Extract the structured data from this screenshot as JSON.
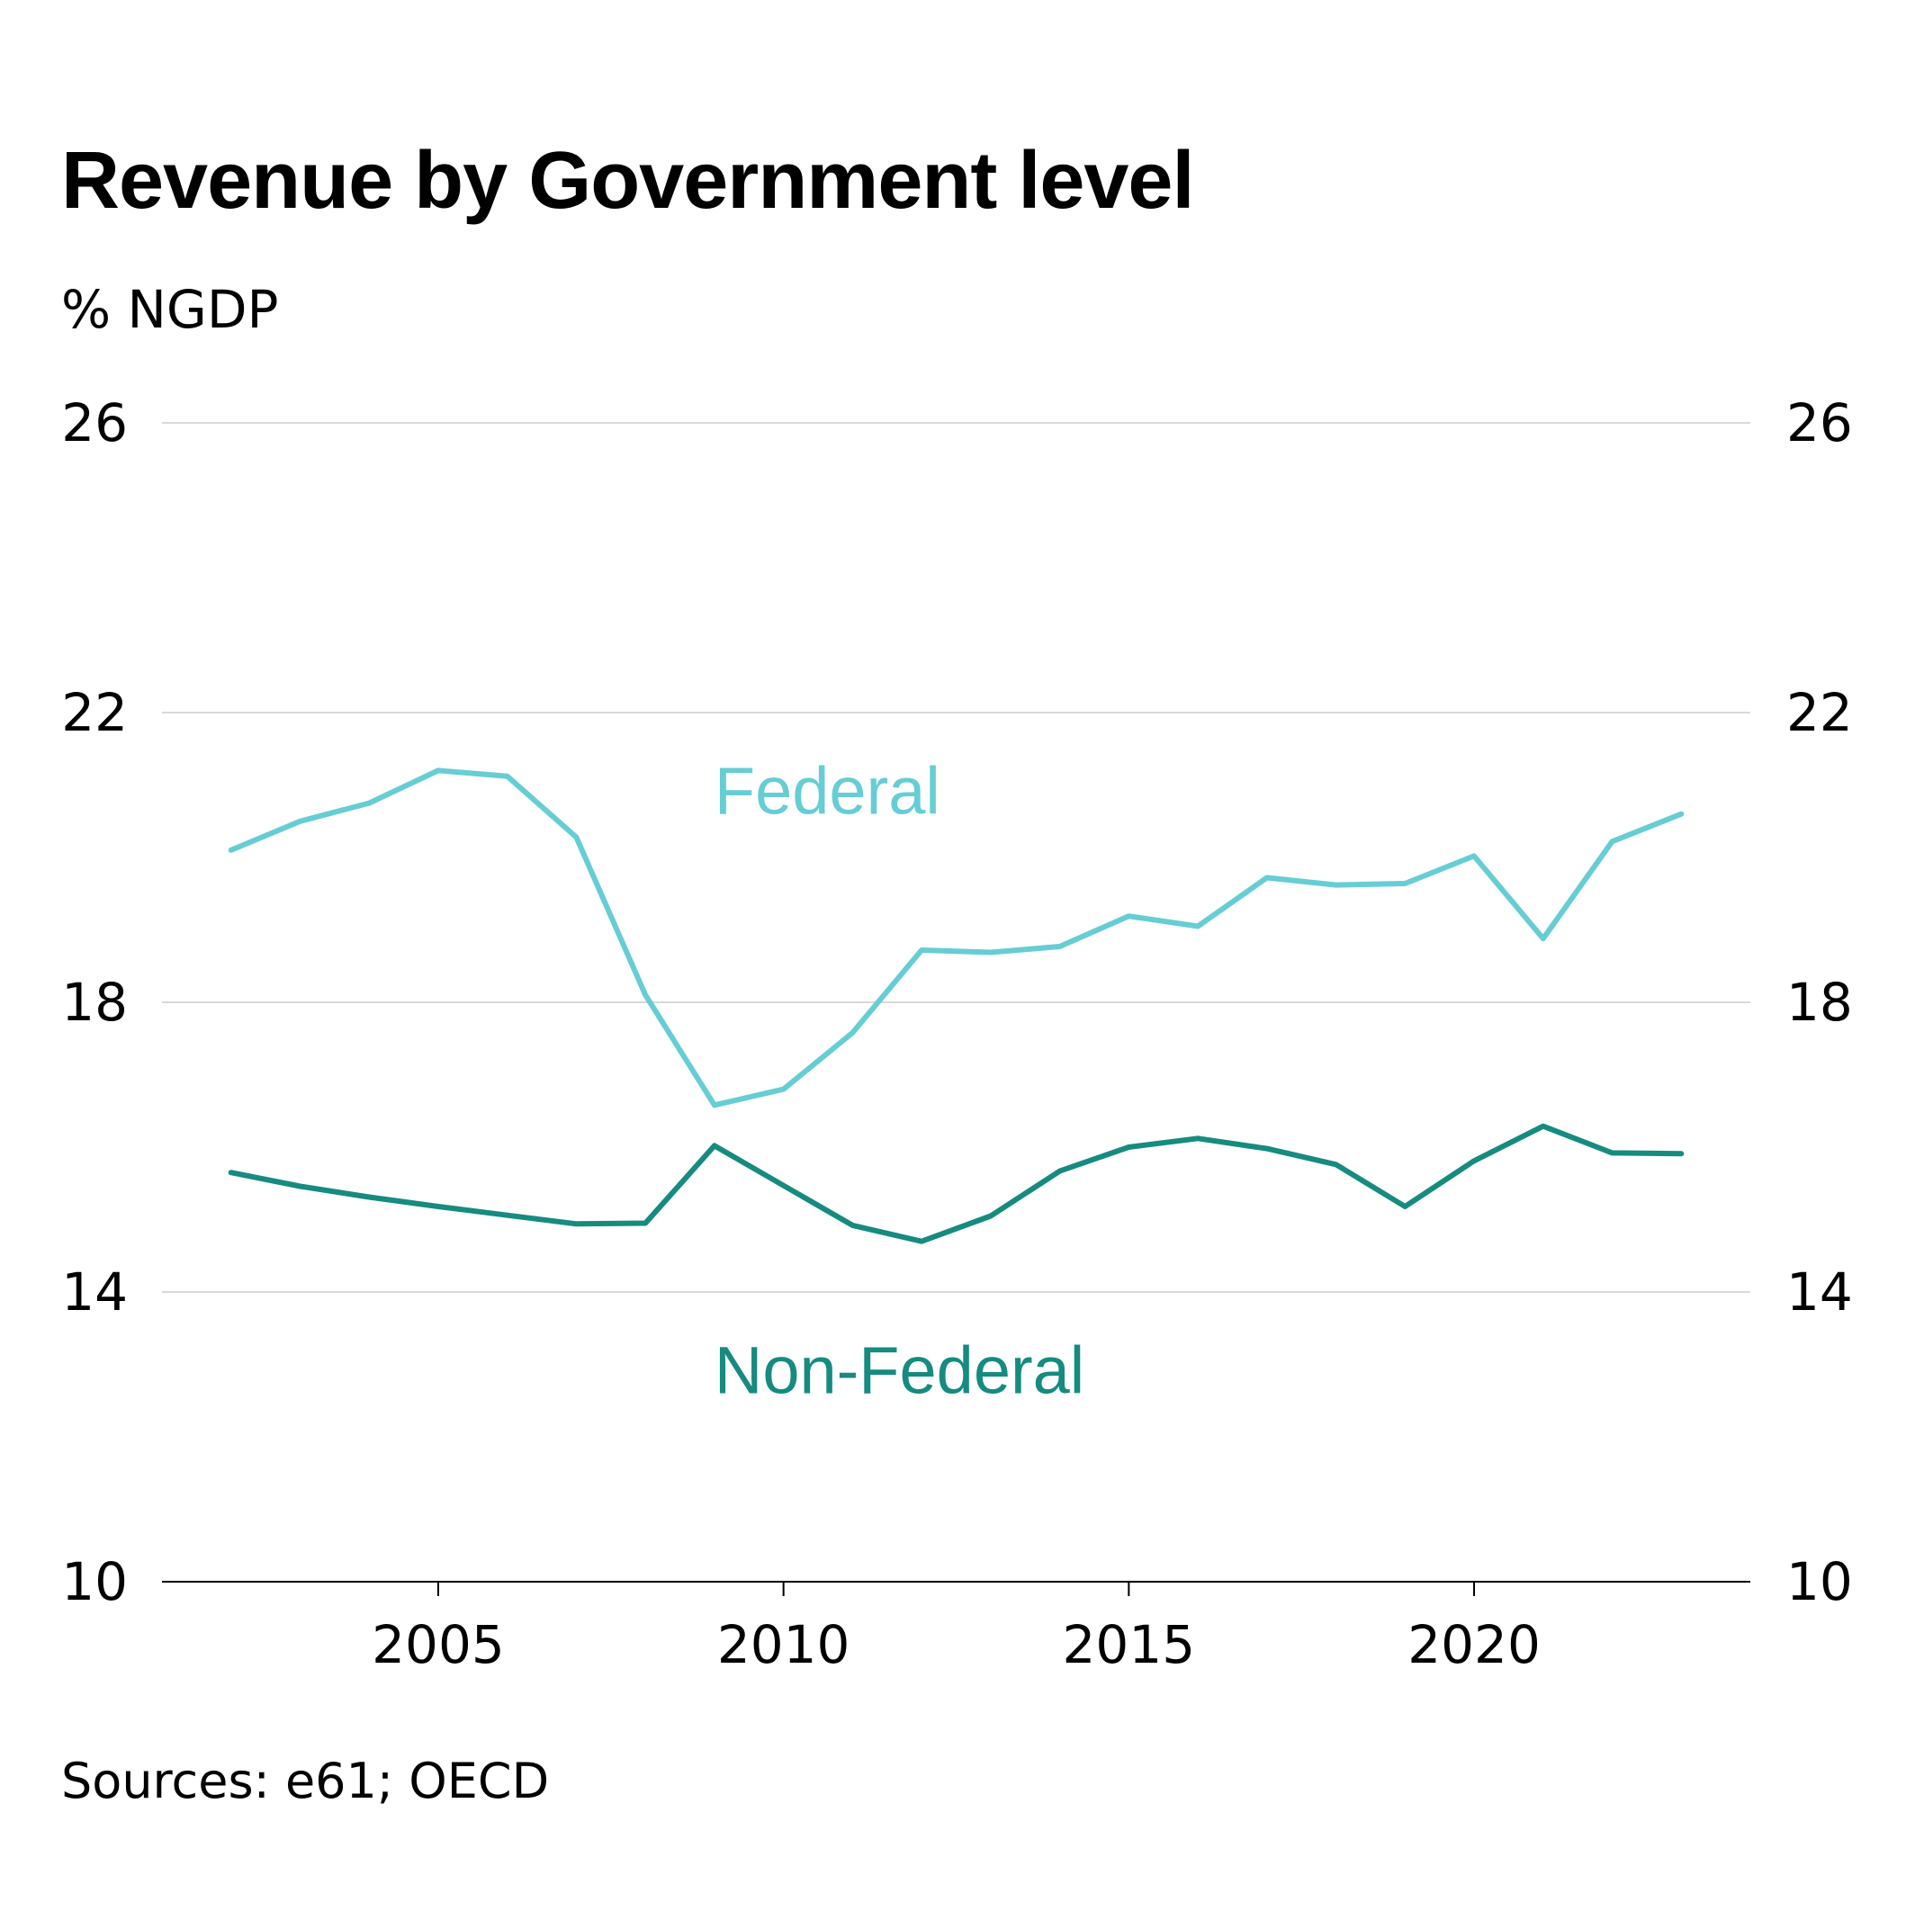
{
  "title": "Revenue by Government level",
  "unit": "% NGDP",
  "source": "Sources: e61; OECD",
  "chart_data": {
    "type": "line",
    "title": "Revenue by Government level",
    "ylabel": "% NGDP",
    "ylim": [
      10,
      26
    ],
    "yticks": [
      10,
      14,
      18,
      22,
      26
    ],
    "xticks": [
      2005,
      2010,
      2015,
      2020
    ],
    "xlim": [
      2001,
      2024
    ],
    "grid": true,
    "legend": "inline labels",
    "x": [
      2002,
      2003,
      2004,
      2005,
      2006,
      2007,
      2008,
      2009,
      2010,
      2011,
      2012,
      2013,
      2014,
      2015,
      2016,
      2017,
      2018,
      2019,
      2020,
      2021,
      2022,
      2023
    ],
    "series": [
      {
        "name": "Federal",
        "color": "#66cdd5",
        "values": [
          20.1,
          20.5,
          20.75,
          21.2,
          21.12,
          20.28,
          18.1,
          16.58,
          16.8,
          17.58,
          18.72,
          18.69,
          18.77,
          19.19,
          19.05,
          19.72,
          19.62,
          19.64,
          20.02,
          18.88,
          20.22,
          20.6
        ]
      },
      {
        "name": "Non-Federal",
        "color": "#168b80",
        "values": [
          15.65,
          15.46,
          15.31,
          15.18,
          15.06,
          14.94,
          14.95,
          16.02,
          15.47,
          14.92,
          14.7,
          15.05,
          15.67,
          16.0,
          16.12,
          15.98,
          15.76,
          15.18,
          15.81,
          16.29,
          15.92,
          15.91
        ]
      }
    ]
  }
}
